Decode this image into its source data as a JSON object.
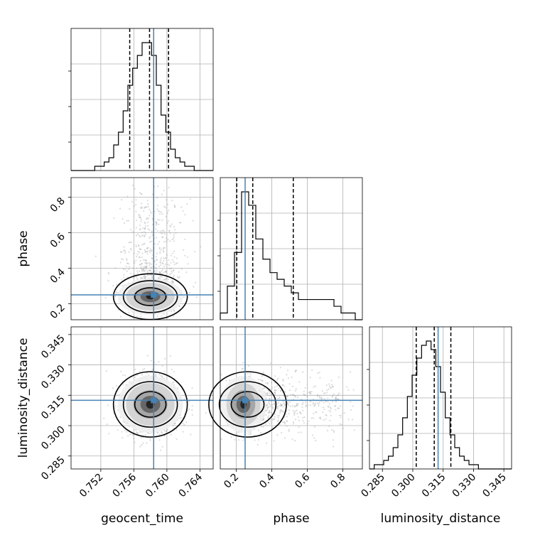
{
  "chart_data": {
    "type": "corner",
    "parameters": [
      "geocent_time",
      "phase",
      "luminosity_distance"
    ],
    "truths": {
      "geocent_time": 0.7584,
      "phase": 0.25,
      "luminosity_distance": 0.3125
    },
    "truth_color": "#4682b4",
    "ranges": {
      "geocent_time": [
        0.7484,
        0.7656
      ],
      "phase": [
        0.11,
        0.91
      ],
      "luminosity_distance": [
        0.2786,
        0.3488
      ]
    },
    "ticks": {
      "geocent_time": {
        "values": [
          0.752,
          0.756,
          0.76,
          0.764
        ],
        "labels": [
          "0.752",
          "0.756",
          "0.760",
          "0.764"
        ]
      },
      "phase": {
        "values": [
          0.2,
          0.4,
          0.6,
          0.8
        ],
        "labels": [
          "0.2",
          "0.4",
          "0.6",
          "0.8"
        ]
      },
      "luminosity_distance": {
        "values": [
          0.285,
          0.3,
          0.315,
          0.33,
          0.345
        ],
        "labels": [
          "0.285",
          "0.300",
          "0.315",
          "0.330",
          "0.345"
        ]
      }
    },
    "quantiles": {
      "geocent_time": [
        0.7555,
        0.7579,
        0.7602
      ],
      "phase": [
        0.203,
        0.293,
        0.521
      ],
      "luminosity_distance": [
        0.3017,
        0.3106,
        0.3188
      ]
    },
    "histograms": {
      "geocent_time": {
        "range": [
          0.7484,
          0.7656
        ],
        "counts": [
          0,
          0,
          0,
          0,
          0,
          1,
          1,
          2,
          3,
          6,
          9,
          14,
          20,
          24,
          27,
          30,
          30,
          27,
          20,
          13,
          9,
          5,
          3,
          2,
          1,
          1,
          0,
          0,
          0,
          0
        ]
      },
      "phase": {
        "range": [
          0.11,
          0.91
        ],
        "counts": [
          1,
          5,
          10,
          19,
          17,
          12,
          9,
          7,
          6,
          5,
          4,
          3,
          3,
          3,
          3,
          3,
          2,
          1,
          1,
          0
        ]
      },
      "luminosity_distance": {
        "range": [
          0.2786,
          0.3488
        ],
        "counts": [
          0,
          1,
          1,
          2,
          3,
          5,
          8,
          12,
          17,
          22,
          26,
          29,
          30,
          28,
          24,
          18,
          12,
          8,
          5,
          3,
          2,
          1,
          1,
          0,
          0,
          0,
          0,
          0,
          0,
          0
        ]
      }
    },
    "grid": true,
    "show_titles": false
  }
}
